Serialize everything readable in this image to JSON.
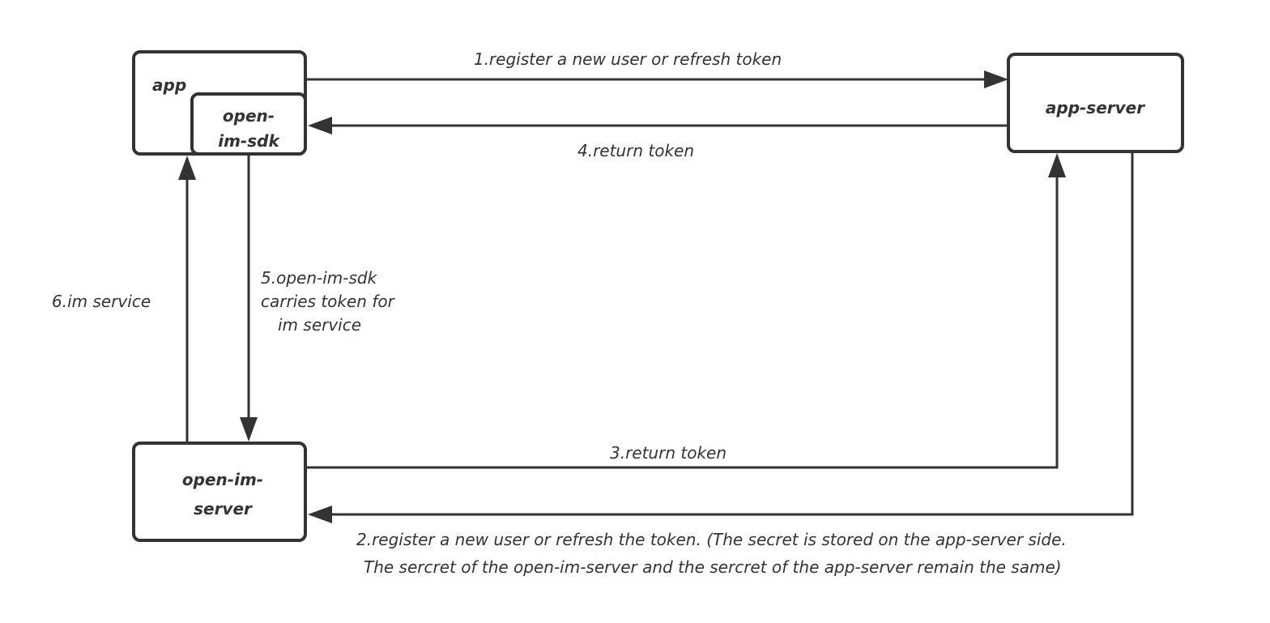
{
  "nodes": {
    "app": "app",
    "sdk_line1": "open-",
    "sdk_line2": "im-sdk",
    "app_server": "app-server",
    "im_server_line1": "open-im-",
    "im_server_line2": "server"
  },
  "edges": {
    "e1": "1.register a new user or refresh token",
    "e2_line1": "2.register a new user or refresh the token. (The secret is stored on the app-server side.",
    "e2_line2": "The sercret of the open-im-server and the sercret of the app-server remain the same)",
    "e3": "3.return token",
    "e4": "4.return token",
    "e5_line1": "5.open-im-sdk",
    "e5_line2": "carries token for",
    "e5_line3": "im service",
    "e6": "6.im service"
  },
  "colors": {
    "stroke": "#333333",
    "background": "#ffffff"
  }
}
